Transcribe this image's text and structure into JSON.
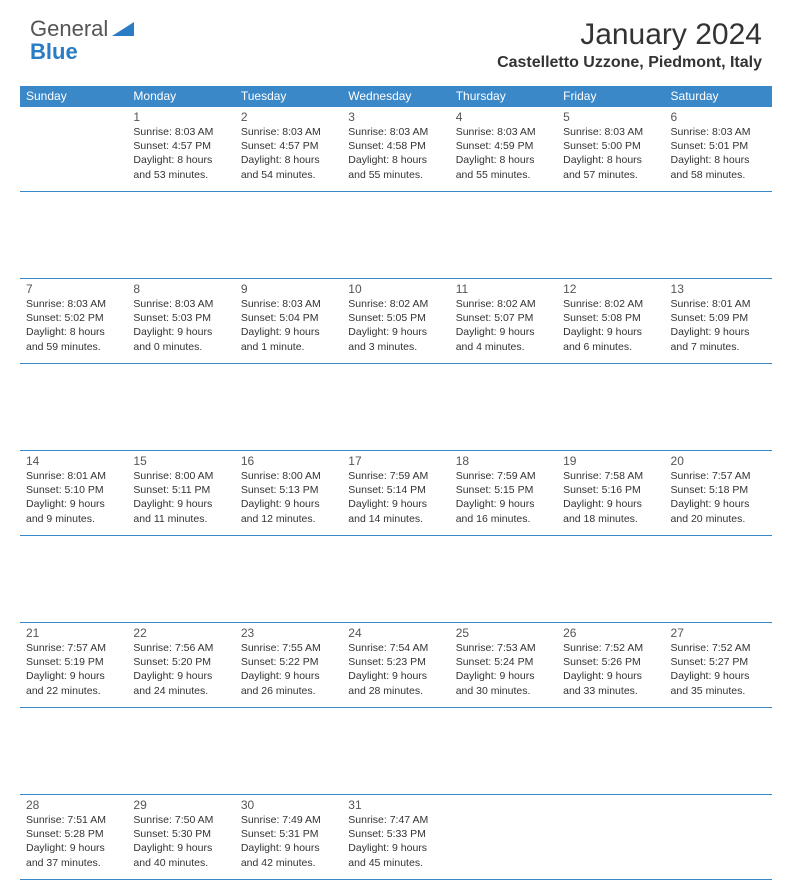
{
  "logo": {
    "general": "General",
    "blue": "Blue"
  },
  "title": "January 2024",
  "subtitle": "Castelletto Uzzone, Piedmont, Italy",
  "colors": {
    "header_bg": "#3b88c9",
    "header_text": "#ffffff",
    "rule": "#3b88c9",
    "logo_blue": "#2a7cc4",
    "body_text": "#333333"
  },
  "day_headers": [
    "Sunday",
    "Monday",
    "Tuesday",
    "Wednesday",
    "Thursday",
    "Friday",
    "Saturday"
  ],
  "weeks": [
    [
      null,
      {
        "n": "1",
        "sr": "Sunrise: 8:03 AM",
        "ss": "Sunset: 4:57 PM",
        "d1": "Daylight: 8 hours",
        "d2": "and 53 minutes."
      },
      {
        "n": "2",
        "sr": "Sunrise: 8:03 AM",
        "ss": "Sunset: 4:57 PM",
        "d1": "Daylight: 8 hours",
        "d2": "and 54 minutes."
      },
      {
        "n": "3",
        "sr": "Sunrise: 8:03 AM",
        "ss": "Sunset: 4:58 PM",
        "d1": "Daylight: 8 hours",
        "d2": "and 55 minutes."
      },
      {
        "n": "4",
        "sr": "Sunrise: 8:03 AM",
        "ss": "Sunset: 4:59 PM",
        "d1": "Daylight: 8 hours",
        "d2": "and 55 minutes."
      },
      {
        "n": "5",
        "sr": "Sunrise: 8:03 AM",
        "ss": "Sunset: 5:00 PM",
        "d1": "Daylight: 8 hours",
        "d2": "and 57 minutes."
      },
      {
        "n": "6",
        "sr": "Sunrise: 8:03 AM",
        "ss": "Sunset: 5:01 PM",
        "d1": "Daylight: 8 hours",
        "d2": "and 58 minutes."
      }
    ],
    [
      {
        "n": "7",
        "sr": "Sunrise: 8:03 AM",
        "ss": "Sunset: 5:02 PM",
        "d1": "Daylight: 8 hours",
        "d2": "and 59 minutes."
      },
      {
        "n": "8",
        "sr": "Sunrise: 8:03 AM",
        "ss": "Sunset: 5:03 PM",
        "d1": "Daylight: 9 hours",
        "d2": "and 0 minutes."
      },
      {
        "n": "9",
        "sr": "Sunrise: 8:03 AM",
        "ss": "Sunset: 5:04 PM",
        "d1": "Daylight: 9 hours",
        "d2": "and 1 minute."
      },
      {
        "n": "10",
        "sr": "Sunrise: 8:02 AM",
        "ss": "Sunset: 5:05 PM",
        "d1": "Daylight: 9 hours",
        "d2": "and 3 minutes."
      },
      {
        "n": "11",
        "sr": "Sunrise: 8:02 AM",
        "ss": "Sunset: 5:07 PM",
        "d1": "Daylight: 9 hours",
        "d2": "and 4 minutes."
      },
      {
        "n": "12",
        "sr": "Sunrise: 8:02 AM",
        "ss": "Sunset: 5:08 PM",
        "d1": "Daylight: 9 hours",
        "d2": "and 6 minutes."
      },
      {
        "n": "13",
        "sr": "Sunrise: 8:01 AM",
        "ss": "Sunset: 5:09 PM",
        "d1": "Daylight: 9 hours",
        "d2": "and 7 minutes."
      }
    ],
    [
      {
        "n": "14",
        "sr": "Sunrise: 8:01 AM",
        "ss": "Sunset: 5:10 PM",
        "d1": "Daylight: 9 hours",
        "d2": "and 9 minutes."
      },
      {
        "n": "15",
        "sr": "Sunrise: 8:00 AM",
        "ss": "Sunset: 5:11 PM",
        "d1": "Daylight: 9 hours",
        "d2": "and 11 minutes."
      },
      {
        "n": "16",
        "sr": "Sunrise: 8:00 AM",
        "ss": "Sunset: 5:13 PM",
        "d1": "Daylight: 9 hours",
        "d2": "and 12 minutes."
      },
      {
        "n": "17",
        "sr": "Sunrise: 7:59 AM",
        "ss": "Sunset: 5:14 PM",
        "d1": "Daylight: 9 hours",
        "d2": "and 14 minutes."
      },
      {
        "n": "18",
        "sr": "Sunrise: 7:59 AM",
        "ss": "Sunset: 5:15 PM",
        "d1": "Daylight: 9 hours",
        "d2": "and 16 minutes."
      },
      {
        "n": "19",
        "sr": "Sunrise: 7:58 AM",
        "ss": "Sunset: 5:16 PM",
        "d1": "Daylight: 9 hours",
        "d2": "and 18 minutes."
      },
      {
        "n": "20",
        "sr": "Sunrise: 7:57 AM",
        "ss": "Sunset: 5:18 PM",
        "d1": "Daylight: 9 hours",
        "d2": "and 20 minutes."
      }
    ],
    [
      {
        "n": "21",
        "sr": "Sunrise: 7:57 AM",
        "ss": "Sunset: 5:19 PM",
        "d1": "Daylight: 9 hours",
        "d2": "and 22 minutes."
      },
      {
        "n": "22",
        "sr": "Sunrise: 7:56 AM",
        "ss": "Sunset: 5:20 PM",
        "d1": "Daylight: 9 hours",
        "d2": "and 24 minutes."
      },
      {
        "n": "23",
        "sr": "Sunrise: 7:55 AM",
        "ss": "Sunset: 5:22 PM",
        "d1": "Daylight: 9 hours",
        "d2": "and 26 minutes."
      },
      {
        "n": "24",
        "sr": "Sunrise: 7:54 AM",
        "ss": "Sunset: 5:23 PM",
        "d1": "Daylight: 9 hours",
        "d2": "and 28 minutes."
      },
      {
        "n": "25",
        "sr": "Sunrise: 7:53 AM",
        "ss": "Sunset: 5:24 PM",
        "d1": "Daylight: 9 hours",
        "d2": "and 30 minutes."
      },
      {
        "n": "26",
        "sr": "Sunrise: 7:52 AM",
        "ss": "Sunset: 5:26 PM",
        "d1": "Daylight: 9 hours",
        "d2": "and 33 minutes."
      },
      {
        "n": "27",
        "sr": "Sunrise: 7:52 AM",
        "ss": "Sunset: 5:27 PM",
        "d1": "Daylight: 9 hours",
        "d2": "and 35 minutes."
      }
    ],
    [
      {
        "n": "28",
        "sr": "Sunrise: 7:51 AM",
        "ss": "Sunset: 5:28 PM",
        "d1": "Daylight: 9 hours",
        "d2": "and 37 minutes."
      },
      {
        "n": "29",
        "sr": "Sunrise: 7:50 AM",
        "ss": "Sunset: 5:30 PM",
        "d1": "Daylight: 9 hours",
        "d2": "and 40 minutes."
      },
      {
        "n": "30",
        "sr": "Sunrise: 7:49 AM",
        "ss": "Sunset: 5:31 PM",
        "d1": "Daylight: 9 hours",
        "d2": "and 42 minutes."
      },
      {
        "n": "31",
        "sr": "Sunrise: 7:47 AM",
        "ss": "Sunset: 5:33 PM",
        "d1": "Daylight: 9 hours",
        "d2": "and 45 minutes."
      },
      null,
      null,
      null
    ]
  ]
}
